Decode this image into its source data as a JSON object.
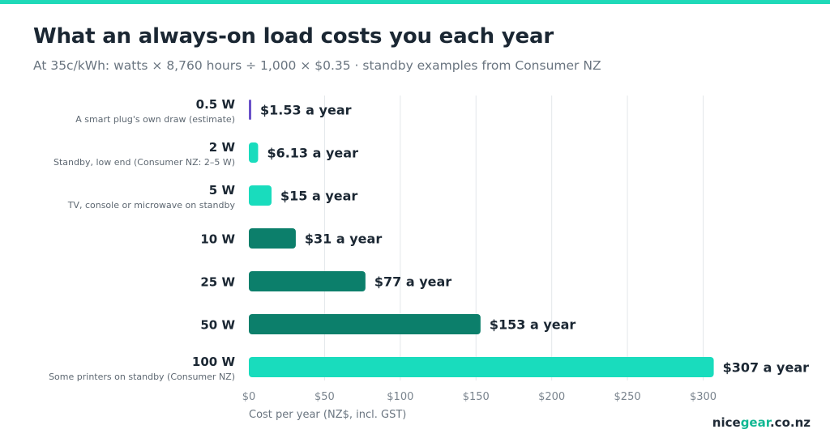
{
  "header": {
    "title": "What an always-on load costs you each year",
    "subtitle": "At 35c/kWh: watts × 8,760 hours ÷ 1,000 × $0.35 · standby examples from Consumer NZ"
  },
  "brand": {
    "part1": "nice",
    "part2": "gear",
    "part3": ".co.nz"
  },
  "colors": {
    "accent": "#1fd9b8",
    "bar_light": "#19dcbd",
    "bar_dark": "#0c7f6b",
    "bar_purple": "#6a52c9",
    "grid": "#e3e7ea",
    "text_dark": "#1b2733",
    "text_muted": "#6a7580"
  },
  "chart_data": {
    "type": "bar",
    "orientation": "horizontal",
    "xlabel": "Cost per year (NZ$, incl. GST)",
    "xlim": [
      0,
      310
    ],
    "xticks": [
      0,
      50,
      100,
      150,
      200,
      250,
      300
    ],
    "xtick_labels": [
      "$0",
      "$50",
      "$100",
      "$150",
      "$200",
      "$250",
      "$300"
    ],
    "grid": "vertical",
    "categories": [
      {
        "label": "0.5 W",
        "sublabel": "A smart plug's own draw (estimate)",
        "value": 1.53,
        "value_label": "$1.53 a year",
        "color": "purple"
      },
      {
        "label": "2 W",
        "sublabel": "Standby, low end (Consumer NZ: 2–5 W)",
        "value": 6.13,
        "value_label": "$6.13 a year",
        "color": "light"
      },
      {
        "label": "5 W",
        "sublabel": "TV, console or microwave on standby",
        "value": 15,
        "value_label": "$15 a year",
        "color": "light"
      },
      {
        "label": "10 W",
        "sublabel": "",
        "value": 31,
        "value_label": "$31 a year",
        "color": "dark"
      },
      {
        "label": "25 W",
        "sublabel": "",
        "value": 77,
        "value_label": "$77 a year",
        "color": "dark"
      },
      {
        "label": "50 W",
        "sublabel": "",
        "value": 153,
        "value_label": "$153 a year",
        "color": "dark"
      },
      {
        "label": "100 W",
        "sublabel": "Some printers on standby (Consumer NZ)",
        "value": 307,
        "value_label": "$307 a year",
        "color": "light"
      }
    ]
  }
}
